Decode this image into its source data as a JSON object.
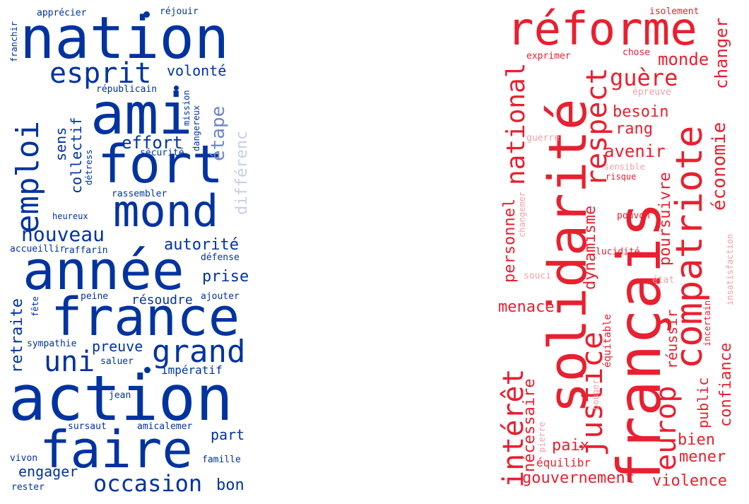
{
  "colors": {
    "blue": "#0033a0",
    "blue_light": "#c6cfe6",
    "red": "#e8202f",
    "red_light": "#f3a1a7"
  },
  "left_cloud": {
    "color": "blue",
    "words": [
      "nation",
      "ami",
      "fort",
      "mond",
      "année",
      "france",
      "action",
      "faire",
      "grand",
      "esprit",
      "emploi",
      "uni",
      "nouveau",
      "occasion",
      "étape",
      "effort",
      "volonté",
      "autorité",
      "prise",
      "retraite",
      "preuve",
      "engager",
      "part",
      "bon",
      "collectif",
      "sens",
      "différenc",
      "résoudre",
      "impératif",
      "apprécier",
      "réjouir",
      "républicain",
      "franchir",
      "mission",
      "dangereux",
      "sécurité",
      "détress",
      "rassembler",
      "heureux",
      "accueillir",
      "raffarin",
      "défense",
      "ajouter",
      "peine",
      "fête",
      "sympathie",
      "saluer",
      "jean",
      "sursaut",
      "amicalemer",
      "vivon",
      "famille",
      "rester"
    ]
  },
  "right_cloud": {
    "color": "red",
    "words": [
      "réforme",
      "solidarité",
      "français",
      "compatriote",
      "respect",
      "justice",
      "europ",
      "intérêt",
      "national",
      "guère",
      "monde",
      "changer",
      "besoin",
      "rang",
      "avenir",
      "économie",
      "dynamisme",
      "poursuivre",
      "personnel",
      "menace",
      "nécessaire",
      "paix",
      "équilibr",
      "gouvernement",
      "violence",
      "mener",
      "bien",
      "public",
      "confiance",
      "réussir",
      "isolement",
      "exprimer",
      "chose",
      "épreuve",
      "guerre",
      "sensible",
      "risque",
      "changemer",
      "pouvon",
      "lucidité",
      "souci",
      "état",
      "insatisfaction",
      "incertain",
      "équitable",
      "bouger",
      "pierre"
    ]
  }
}
